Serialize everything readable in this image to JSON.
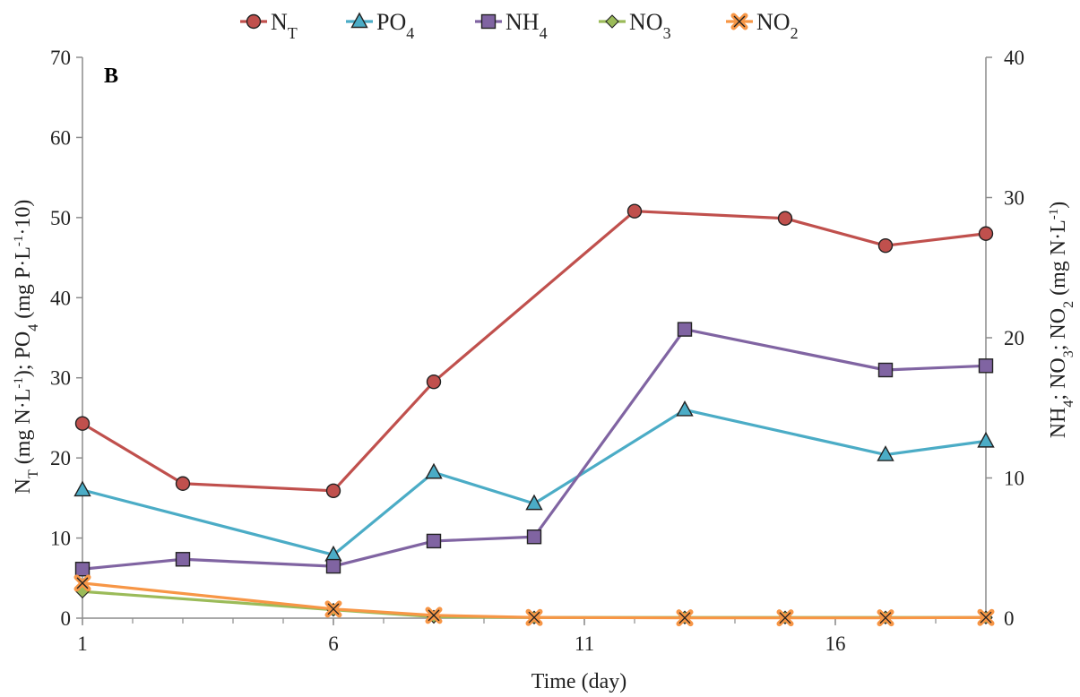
{
  "chart_data": {
    "type": "line",
    "panel_label": "B",
    "xlabel": "Time (day)",
    "ylabel_left": {
      "parts": [
        {
          "t": "N"
        },
        {
          "t": "T",
          "s": "sub"
        },
        {
          "t": " (mg N·L"
        },
        {
          "t": "-1",
          "s": "sup"
        },
        {
          "t": "); PO"
        },
        {
          "t": "4",
          "s": "sub"
        },
        {
          "t": " (mg P·L"
        },
        {
          "t": "-1",
          "s": "sup"
        },
        {
          "t": "·10)"
        }
      ]
    },
    "ylabel_right": {
      "parts": [
        {
          "t": "NH"
        },
        {
          "t": "4",
          "s": "sub"
        },
        {
          "t": "; NO"
        },
        {
          "t": "3",
          "s": "sub"
        },
        {
          "t": "; NO"
        },
        {
          "t": "2",
          "s": "sub"
        },
        {
          "t": " (mg N·L"
        },
        {
          "t": "-1",
          "s": "sup"
        },
        {
          "t": ")"
        }
      ]
    },
    "xlim": [
      1,
      19
    ],
    "xticks": [
      1,
      6,
      11,
      16
    ],
    "ylim_left": [
      0,
      70
    ],
    "yticks_left": [
      0,
      10,
      20,
      30,
      40,
      50,
      60,
      70
    ],
    "ylim_right": [
      0,
      40
    ],
    "yticks_right": [
      0,
      10,
      20,
      30,
      40
    ],
    "grid": false,
    "legend_position": "top",
    "series": [
      {
        "name": "NT",
        "label_parts": [
          {
            "t": "N"
          },
          {
            "t": "T",
            "s": "sub"
          }
        ],
        "axis": "left",
        "color": "#c0504d",
        "marker": "circle",
        "points": [
          [
            1,
            24.3
          ],
          [
            3,
            16.8
          ],
          [
            6,
            15.9
          ],
          [
            8,
            29.5
          ],
          [
            12,
            50.8
          ],
          [
            15,
            49.9
          ],
          [
            17,
            46.5
          ],
          [
            19,
            48.0
          ]
        ]
      },
      {
        "name": "PO4",
        "label_parts": [
          {
            "t": "PO"
          },
          {
            "t": "4",
            "s": "sub"
          }
        ],
        "axis": "left",
        "color": "#4bacc6",
        "marker": "triangle",
        "points": [
          [
            1,
            16.0
          ],
          [
            6,
            7.9
          ],
          [
            8,
            18.2
          ],
          [
            10,
            14.3
          ],
          [
            13,
            26.0
          ],
          [
            17,
            20.4
          ],
          [
            19,
            22.1
          ]
        ]
      },
      {
        "name": "NH4",
        "label_parts": [
          {
            "t": "NH"
          },
          {
            "t": "4",
            "s": "sub"
          }
        ],
        "axis": "right",
        "color": "#8064a2",
        "marker": "square",
        "points": [
          [
            1,
            3.5
          ],
          [
            3,
            4.2
          ],
          [
            6,
            3.7
          ],
          [
            8,
            5.5
          ],
          [
            10,
            5.8
          ],
          [
            13,
            20.6
          ],
          [
            17,
            17.7
          ],
          [
            19,
            18.0
          ]
        ]
      },
      {
        "name": "NO3",
        "label_parts": [
          {
            "t": "NO"
          },
          {
            "t": "3",
            "s": "sub"
          }
        ],
        "axis": "right",
        "color": "#9bbb59",
        "marker": "diamond",
        "points": [
          [
            1,
            1.9
          ],
          [
            6,
            0.6
          ],
          [
            8,
            0.1
          ],
          [
            10,
            0.05
          ],
          [
            13,
            0.05
          ],
          [
            15,
            0.05
          ],
          [
            17,
            0.05
          ],
          [
            19,
            0.05
          ]
        ]
      },
      {
        "name": "NO2",
        "label_parts": [
          {
            "t": "NO"
          },
          {
            "t": "2",
            "s": "sub"
          }
        ],
        "axis": "right",
        "color": "#f79646",
        "marker": "x",
        "points": [
          [
            1,
            2.5
          ],
          [
            6,
            0.65
          ],
          [
            8,
            0.2
          ],
          [
            10,
            0.05
          ],
          [
            13,
            0.02
          ],
          [
            15,
            0.02
          ],
          [
            17,
            0.02
          ],
          [
            19,
            0.05
          ]
        ]
      }
    ]
  }
}
